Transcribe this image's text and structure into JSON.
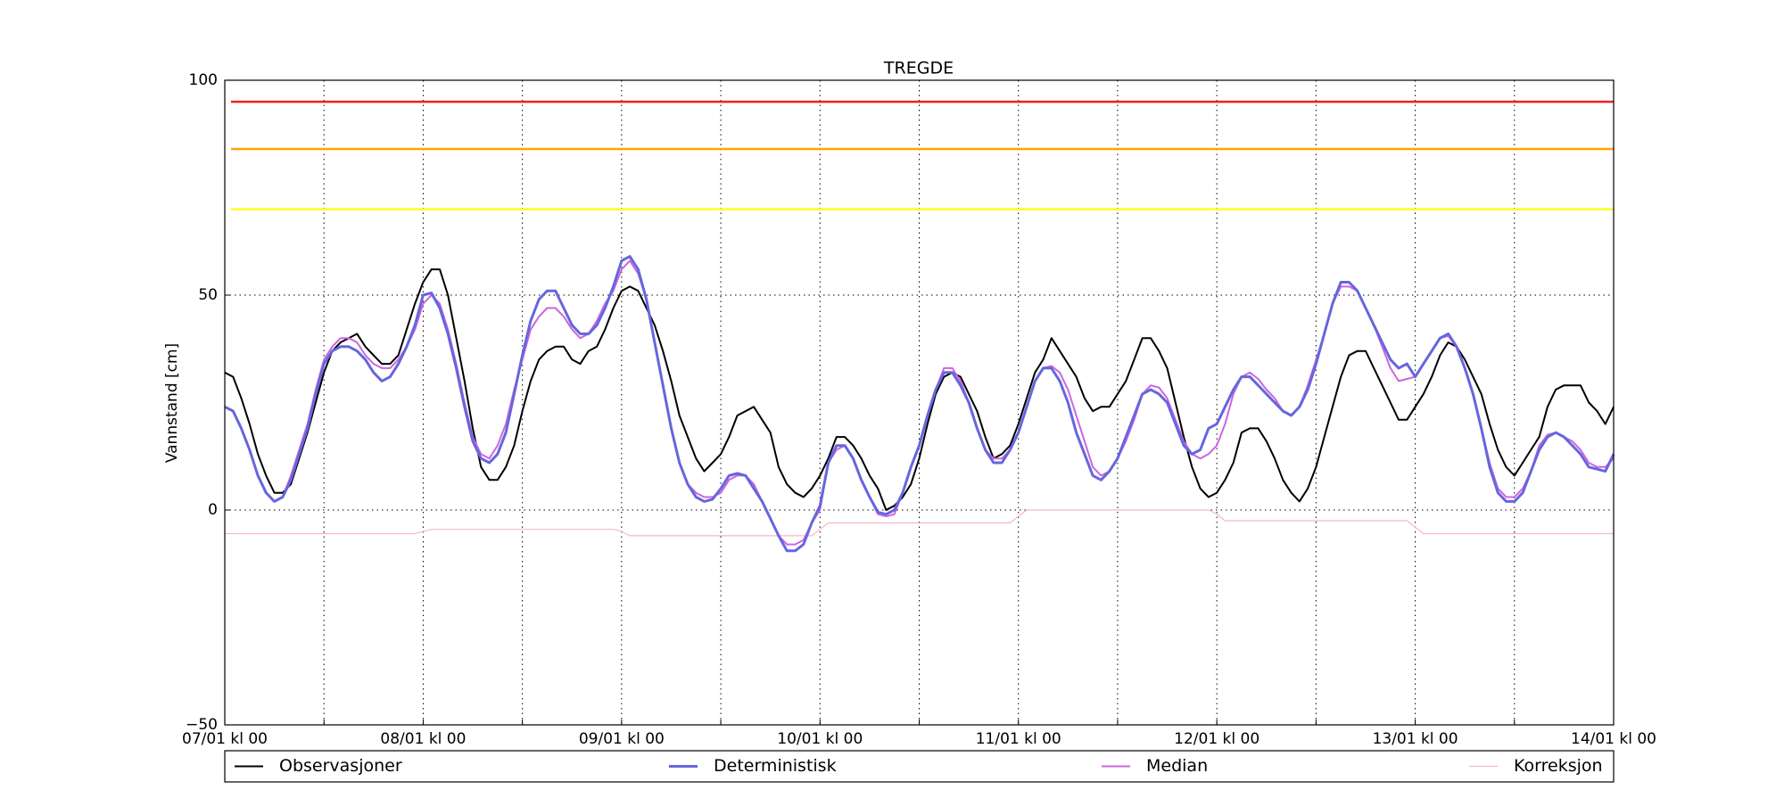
{
  "chart_data": {
    "type": "line",
    "title": "TREGDE",
    "ylabel": "Vannstand [cm]",
    "x": [
      0,
      1,
      2,
      3,
      4,
      5,
      6,
      7,
      8,
      9,
      10,
      11,
      12,
      13,
      14,
      15,
      16,
      17,
      18,
      19,
      20,
      21,
      22,
      23,
      24,
      25,
      26,
      27,
      28,
      29,
      30,
      31,
      32,
      33,
      34,
      35,
      36,
      37,
      38,
      39,
      40,
      41,
      42,
      43,
      44,
      45,
      46,
      47,
      48,
      49,
      50,
      51,
      52,
      53,
      54,
      55,
      56,
      57,
      58,
      59,
      60,
      61,
      62,
      63,
      64,
      65,
      66,
      67,
      68,
      69,
      70,
      71,
      72,
      73,
      74,
      75,
      76,
      77,
      78,
      79,
      80,
      81,
      82,
      83,
      84,
      85,
      86,
      87,
      88,
      89,
      90,
      91,
      92,
      93,
      94,
      95,
      96,
      97,
      98,
      99,
      100,
      101,
      102,
      103,
      104,
      105,
      106,
      107,
      108,
      109,
      110,
      111,
      112,
      113,
      114,
      115,
      116,
      117,
      118,
      119,
      120,
      121,
      122,
      123,
      124,
      125,
      126,
      127,
      128,
      129,
      130,
      131,
      132,
      133,
      134,
      135,
      136,
      137,
      138,
      139,
      140,
      141,
      142,
      143,
      144,
      145,
      146,
      147,
      148,
      149,
      150,
      151,
      152,
      153,
      154,
      155,
      156,
      157,
      158,
      159,
      160,
      161,
      162,
      163,
      164,
      165,
      166,
      167,
      168
    ],
    "series": [
      {
        "name": "Observasjoner",
        "color": "#000000",
        "width": 2,
        "values": [
          32,
          31,
          26,
          20,
          13,
          8,
          4,
          4,
          6,
          12,
          18,
          25,
          32,
          37,
          39,
          40,
          41,
          38,
          36,
          34,
          34,
          36,
          42,
          48,
          53,
          56,
          56,
          50,
          40,
          30,
          19,
          10,
          7,
          7,
          10,
          15,
          23,
          30,
          35,
          37,
          38,
          38,
          35,
          34,
          37,
          38,
          42,
          47,
          51,
          52,
          51,
          47,
          43,
          37,
          30,
          22,
          17,
          12,
          9,
          11,
          13,
          17,
          22,
          23,
          24,
          21,
          18,
          10,
          6,
          4,
          3,
          5,
          8,
          12,
          17,
          17,
          15,
          12,
          8,
          5,
          0,
          1,
          3,
          6,
          12,
          20,
          27,
          31,
          32,
          31,
          27,
          23,
          17,
          12,
          13,
          15,
          20,
          26,
          32,
          35,
          40,
          37,
          34,
          31,
          26,
          23,
          24,
          24,
          27,
          30,
          35,
          40,
          40,
          37,
          33,
          25,
          17,
          10,
          5,
          3,
          4,
          7,
          11,
          18,
          19,
          19,
          16,
          12,
          7,
          4,
          2,
          5,
          10,
          17,
          24,
          31,
          36,
          37,
          37,
          33,
          29,
          25,
          21,
          21,
          24,
          27,
          31,
          36,
          39,
          38,
          35,
          31,
          27,
          20,
          14,
          10,
          8,
          11,
          14,
          17,
          24,
          28,
          29,
          29,
          29,
          25,
          23,
          20,
          24
        ]
      },
      {
        "name": "Deterministisk",
        "color": "#6666dd",
        "width": 3,
        "values": [
          24,
          23,
          19,
          14,
          8,
          4,
          2,
          3,
          7,
          13,
          19,
          27,
          34,
          37,
          38,
          38,
          37,
          35,
          32,
          30,
          31,
          34,
          38,
          43,
          50,
          50.5,
          47,
          41,
          33,
          24,
          16,
          12,
          11,
          13,
          18,
          27,
          36,
          44,
          49,
          51,
          51,
          47,
          43,
          41,
          41,
          43,
          47,
          52,
          58,
          59,
          56,
          49,
          39,
          29,
          19,
          11,
          6,
          3,
          2,
          2.5,
          5,
          8,
          8.5,
          8,
          5,
          2,
          -2,
          -6,
          -9.5,
          -9.5,
          -8,
          -3,
          1,
          11,
          15,
          15,
          12,
          7,
          3,
          -0.5,
          -1,
          0,
          4,
          10,
          15,
          22,
          28,
          32,
          32,
          29,
          25,
          19,
          14,
          11,
          11,
          14,
          18,
          24,
          30,
          33,
          33,
          30,
          25,
          18,
          13,
          8,
          7,
          9,
          12,
          17,
          22,
          27,
          28,
          27,
          25,
          20,
          15,
          13,
          14,
          19,
          20,
          24,
          28,
          31,
          31,
          29,
          27,
          25,
          23,
          22,
          24,
          28,
          34,
          41,
          48,
          53,
          53,
          51,
          47,
          43,
          39,
          35,
          33,
          34,
          31,
          34,
          37,
          40,
          41,
          38,
          33,
          27,
          19,
          10,
          4,
          2,
          2,
          4,
          9,
          14,
          17,
          18,
          17,
          15,
          13,
          10,
          9.5,
          9,
          13
        ]
      },
      {
        "name": "Median",
        "color": "#cc66dd",
        "width": 2,
        "values": [
          24,
          23,
          19,
          14,
          8,
          4,
          2,
          3,
          8,
          14,
          20,
          28,
          35,
          38,
          40,
          40,
          39,
          36,
          34,
          33,
          33,
          35,
          38,
          42,
          48,
          50,
          48,
          42,
          34,
          25,
          17,
          13,
          12,
          15,
          20,
          28,
          35,
          42,
          45,
          47,
          47,
          45,
          42,
          40,
          41,
          44,
          48,
          51,
          56,
          58,
          55,
          49,
          39,
          29,
          19,
          11,
          6,
          4,
          3,
          3,
          4,
          7,
          8,
          8,
          6,
          2,
          -2,
          -6,
          -8,
          -8,
          -7,
          -3,
          0,
          11,
          14,
          15,
          12,
          7,
          3,
          -1,
          -1.5,
          -1,
          4,
          10,
          15,
          22,
          28,
          33,
          33,
          30,
          25,
          19,
          14,
          12,
          12,
          14,
          18,
          24,
          30,
          33,
          33.5,
          32,
          28,
          22,
          16,
          10,
          8,
          9,
          12,
          16,
          21,
          27,
          29,
          28.5,
          26,
          21,
          16,
          13,
          12,
          13,
          15,
          20,
          27,
          31,
          32,
          30.5,
          28,
          26,
          23,
          22,
          24,
          29,
          35,
          41,
          48,
          52,
          52,
          51,
          47,
          43,
          38,
          33,
          30,
          30.5,
          31,
          34,
          37,
          40,
          40.5,
          38,
          33,
          27,
          19,
          11,
          5,
          3,
          3,
          5,
          9,
          15,
          17.5,
          18,
          17,
          16,
          14,
          11,
          10,
          10,
          12
        ]
      },
      {
        "name": "Korreksjon",
        "color": "#f4b8c8",
        "width": 1.2,
        "values": [
          -5.5,
          -5.5,
          -5.5,
          -5.5,
          -5.5,
          -5.5,
          -5.5,
          -5.5,
          -5.5,
          -5.5,
          -5.5,
          -5.5,
          -5.5,
          -5.5,
          -5.5,
          -5.5,
          -5.5,
          -5.5,
          -5.5,
          -5.5,
          -5.5,
          -5.5,
          -5.5,
          -5.5,
          -5,
          -4.5,
          -4.5,
          -4.5,
          -4.5,
          -4.5,
          -4.5,
          -4.5,
          -4.5,
          -4.5,
          -4.5,
          -4.5,
          -4.5,
          -4.5,
          -4.5,
          -4.5,
          -4.5,
          -4.5,
          -4.5,
          -4.5,
          -4.5,
          -4.5,
          -4.5,
          -4.5,
          -5,
          -6,
          -6,
          -6,
          -6,
          -6,
          -6,
          -6,
          -6,
          -6,
          -6,
          -6,
          -6,
          -6,
          -6,
          -6,
          -6,
          -6,
          -6,
          -6,
          -6,
          -6,
          -6,
          -6,
          -4.5,
          -3,
          -3,
          -3,
          -3,
          -3,
          -3,
          -3,
          -3,
          -3,
          -3,
          -3,
          -3,
          -3,
          -3,
          -3,
          -3,
          -3,
          -3,
          -3,
          -3,
          -3,
          -3,
          -3,
          -1.5,
          0,
          0,
          0,
          0,
          0,
          0,
          0,
          0,
          0,
          0,
          0,
          0,
          0,
          0,
          0,
          0,
          0,
          0,
          0,
          0,
          0,
          0,
          0,
          -1,
          -2.5,
          -2.5,
          -2.5,
          -2.5,
          -2.5,
          -2.5,
          -2.5,
          -2.5,
          -2.5,
          -2.5,
          -2.5,
          -2.5,
          -2.5,
          -2.5,
          -2.5,
          -2.5,
          -2.5,
          -2.5,
          -2.5,
          -2.5,
          -2.5,
          -2.5,
          -2.5,
          -4,
          -5.5,
          -5.5,
          -5.5,
          -5.5,
          -5.5,
          -5.5,
          -5.5,
          -5.5,
          -5.5,
          -5.5,
          -5.5,
          -5.5,
          -5.5,
          -5.5,
          -5.5,
          -5.5,
          -5.5,
          -5.5,
          -5.5,
          -5.5,
          -5.5,
          -5.5,
          -5.5,
          -5.5
        ]
      }
    ],
    "thresholds": [
      {
        "value": 95,
        "color": "#ee2222"
      },
      {
        "value": 84,
        "color": "#ffa500"
      },
      {
        "value": 70,
        "color": "#ffff22"
      }
    ],
    "xlim": [
      0,
      168
    ],
    "xticks": [
      {
        "value": 0,
        "label": "07/01 kl 00"
      },
      {
        "value": 24,
        "label": "08/01 kl 00"
      },
      {
        "value": 48,
        "label": "09/01 kl 00"
      },
      {
        "value": 72,
        "label": "10/01 kl 00"
      },
      {
        "value": 96,
        "label": "11/01 kl 00"
      },
      {
        "value": 120,
        "label": "12/01 kl 00"
      },
      {
        "value": 144,
        "label": "13/01 kl 00"
      },
      {
        "value": 168,
        "label": "14/01 kl 00"
      }
    ],
    "minor_xticks": [
      12,
      36,
      60,
      84,
      108,
      132,
      156
    ],
    "ylim": [
      -50,
      100
    ],
    "yticks": [
      {
        "value": -50,
        "label": "−50"
      },
      0,
      50,
      100
    ],
    "grid": true,
    "legend": "bottom"
  }
}
